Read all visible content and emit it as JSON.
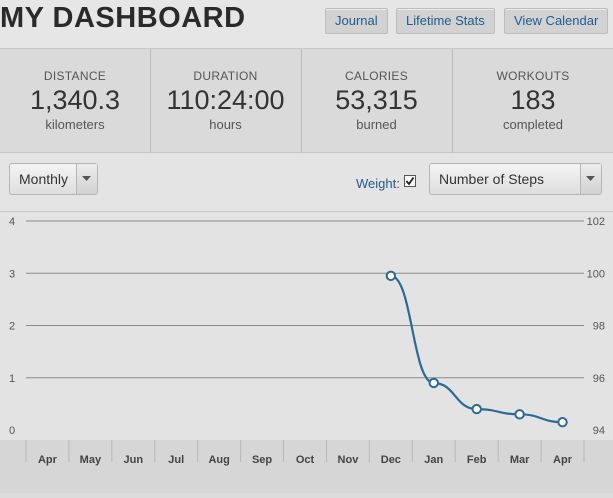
{
  "header": {
    "title": "MY DASHBOARD",
    "nav": {
      "journal": "Journal",
      "lifetime_stats": "Lifetime Stats",
      "view_calendar": "View Calendar"
    }
  },
  "stats": [
    {
      "label": "DISTANCE",
      "value": "1,340.3",
      "unit": "kilometers"
    },
    {
      "label": "DURATION",
      "value": "110:24:00",
      "unit": "hours"
    },
    {
      "label": "CALORIES",
      "value": "53,315",
      "unit": "burned"
    },
    {
      "label": "WORKOUTS",
      "value": "183",
      "unit": "completed"
    }
  ],
  "controls": {
    "period": {
      "selected": "Monthly"
    },
    "weight": {
      "label": "Weight:",
      "checked": true
    },
    "metric": {
      "selected": "Number of Steps"
    }
  },
  "colors": {
    "accent": "#1f5d8c",
    "line": "#2a6a96",
    "grid": "#8a8a8a"
  },
  "chart_data": {
    "type": "line",
    "categories": [
      "Apr",
      "May",
      "Jun",
      "Jul",
      "Aug",
      "Sep",
      "Oct",
      "Nov",
      "Dec",
      "Jan",
      "Feb",
      "Mar",
      "Apr"
    ],
    "left_axis": {
      "ticks": [
        "0",
        "1",
        "2",
        "3",
        "4"
      ],
      "range": [
        0,
        4
      ]
    },
    "right_axis": {
      "ticks": [
        "94",
        "96",
        "98",
        "100",
        "102"
      ],
      "range": [
        94,
        102
      ]
    },
    "series": [
      {
        "axis": "right",
        "points": [
          {
            "x": "Dec",
            "y": 99.9
          },
          {
            "x": "Jan",
            "y": 95.8
          },
          {
            "x": "Feb",
            "y": 94.8
          },
          {
            "x": "Mar",
            "y": 94.6
          },
          {
            "x": "Apr",
            "y": 94.3
          }
        ]
      }
    ],
    "grid": true
  }
}
